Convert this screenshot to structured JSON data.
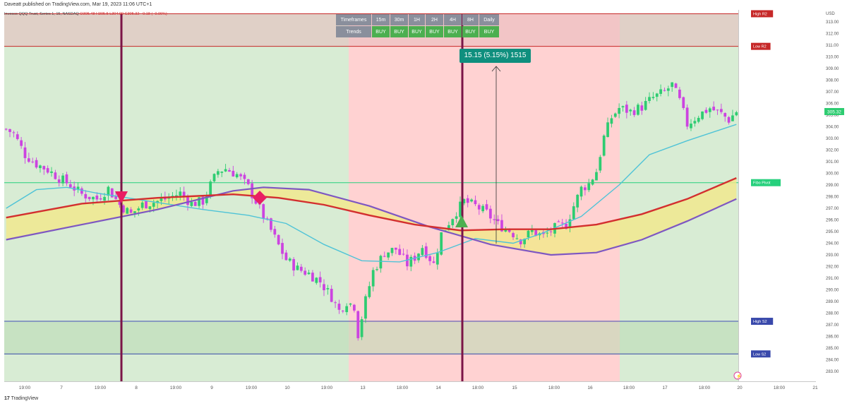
{
  "header": {
    "published": "Daveatt published on TradingView.com, Mar 19, 2023 11:06 UTC+1",
    "symbol_line": "Invesco QQQ Trust, Series 1, 15, NASDAQ",
    "ohlc": "O305.48 H305.5 L304.99 C305.32 −0.18 (−0.06%)"
  },
  "footer": {
    "brand": "TradingView",
    "logo_text": "17"
  },
  "timeframes_table": {
    "row1_label": "Timeframes",
    "row2_label": "Trends",
    "timeframes": [
      "15m",
      "30m",
      "1H",
      "2H",
      "4H",
      "8H",
      "Daily"
    ],
    "trends": [
      "BUY",
      "BUY",
      "BUY",
      "BUY",
      "BUY",
      "BUY",
      "BUY"
    ]
  },
  "measure_label": "15.15 (5.15%) 1515",
  "price_axis": {
    "currency": "USD",
    "ticks": [
      "313.00",
      "312.00",
      "311.00",
      "310.00",
      "309.00",
      "308.00",
      "307.00",
      "306.00",
      "305.00",
      "304.00",
      "303.00",
      "302.00",
      "301.00",
      "300.00",
      "299.00",
      "298.00",
      "297.00",
      "296.00",
      "295.00",
      "294.00",
      "293.00",
      "292.00",
      "291.00",
      "290.00",
      "289.00",
      "288.00",
      "287.00",
      "286.00",
      "285.00",
      "284.00",
      "283.00"
    ],
    "last_price": "305.32"
  },
  "time_axis": {
    "ticks": [
      "19:00",
      "7",
      "19:00",
      "8",
      "19:00",
      "9",
      "19:00",
      "10",
      "19:00",
      "13",
      "18:00",
      "14",
      "18:00",
      "15",
      "18:00",
      "16",
      "18:00",
      "17",
      "18:00",
      "20",
      "18:00",
      "21"
    ]
  },
  "levels": [
    {
      "label": "High R2",
      "price": 313.7,
      "color": "#c62828"
    },
    {
      "label": "Low R2",
      "price": 310.9,
      "color": "#c62828"
    },
    {
      "label": "Fibo Pivot",
      "price": 299.2,
      "color": "#26d07c"
    },
    {
      "label": "High S2",
      "price": 287.3,
      "color": "#3949ab"
    },
    {
      "label": "Low S2",
      "price": 284.5,
      "color": "#3949ab"
    }
  ],
  "colors": {
    "bull_candle": "#2ecc71",
    "bear_candle": "#cc44e0",
    "bg_green": "#d8ecd4",
    "bg_red": "#ffd2d2",
    "ma_fast": "#d32f2f",
    "ma_slow": "#7e57c2",
    "ma_cyan": "#4fc3d7",
    "fill_yellow": "#f3e98a",
    "signal_line": "#7b1447"
  },
  "chart_data": {
    "type": "candlestick",
    "symbol": "Invesco QQQ Trust, Series 1, 15, NASDAQ",
    "ylim": [
      282.3,
      314.5
    ],
    "x_ticks": [
      "19:00",
      "7",
      "19:00",
      "8",
      "19:00",
      "9",
      "19:00",
      "10",
      "19:00",
      "13",
      "18:00",
      "14",
      "18:00",
      "15",
      "18:00",
      "16",
      "18:00",
      "17",
      "18:00",
      "20",
      "18:00",
      "21"
    ],
    "close_path": [
      [
        0,
        303.8
      ],
      [
        2,
        303.4
      ],
      [
        5,
        301.6
      ],
      [
        8,
        300.8
      ],
      [
        11,
        300.3
      ],
      [
        14,
        299.6
      ],
      [
        17,
        299.0
      ],
      [
        20,
        298.2
      ],
      [
        24,
        297.8
      ],
      [
        27,
        298.7
      ],
      [
        30,
        297.3
      ],
      [
        33,
        296.5
      ],
      [
        36,
        297.3
      ],
      [
        40,
        297.6
      ],
      [
        43,
        297.9
      ],
      [
        46,
        298.3
      ],
      [
        49,
        297.4
      ],
      [
        52,
        297.6
      ],
      [
        54,
        299.0
      ],
      [
        56,
        300.2
      ],
      [
        58,
        300.4
      ],
      [
        61,
        299.9
      ],
      [
        64,
        298.8
      ],
      [
        66,
        297.6
      ],
      [
        68,
        296.3
      ],
      [
        70,
        295.1
      ],
      [
        72,
        293.8
      ],
      [
        74,
        292.6
      ],
      [
        77,
        291.8
      ],
      [
        80,
        291.4
      ],
      [
        83,
        290.7
      ],
      [
        86,
        289.4
      ],
      [
        88,
        288.2
      ],
      [
        90,
        289.0
      ],
      [
        92,
        288.6
      ],
      [
        93,
        286.2
      ],
      [
        95,
        289.1
      ],
      [
        97,
        291.6
      ],
      [
        100,
        293.2
      ],
      [
        103,
        293.5
      ],
      [
        106,
        292.2
      ],
      [
        108,
        292.8
      ],
      [
        110,
        293.7
      ],
      [
        113,
        292.2
      ],
      [
        115,
        294.8
      ],
      [
        118,
        296.3
      ],
      [
        121,
        297.6
      ],
      [
        124,
        297.2
      ],
      [
        127,
        296.6
      ],
      [
        130,
        295.6
      ],
      [
        133,
        295.1
      ],
      [
        136,
        294.3
      ],
      [
        139,
        295.0
      ],
      [
        142,
        294.6
      ],
      [
        145,
        295.3
      ],
      [
        148,
        295.6
      ],
      [
        150,
        297.2
      ],
      [
        152,
        298.7
      ],
      [
        154,
        299.1
      ],
      [
        156,
        300.2
      ],
      [
        158,
        303.1
      ],
      [
        160,
        304.8
      ],
      [
        162,
        305.6
      ],
      [
        165,
        305.3
      ],
      [
        168,
        305.7
      ],
      [
        171,
        306.5
      ],
      [
        174,
        307.0
      ],
      [
        176,
        307.6
      ],
      [
        178,
        306.2
      ],
      [
        180,
        304.2
      ],
      [
        183,
        305.0
      ],
      [
        186,
        305.6
      ],
      [
        189,
        305.1
      ],
      [
        191,
        304.6
      ],
      [
        193,
        305.32
      ]
    ],
    "moving_average_red": "rises from 296 to 298 then eases to 295 and climbs to 299.5",
    "moving_average_purple": "rises from 294 to 298.8 then falls to 293 and climbs to 297.8",
    "signals": [
      {
        "type": "sell-triangle",
        "color": "#e91e63",
        "price": 298.0
      },
      {
        "type": "diamond",
        "color": "#e91e63",
        "price": 297.9
      },
      {
        "type": "buy-triangle",
        "color": "#4caf50",
        "price": 295.8
      }
    ],
    "measure": {
      "from": 293.8,
      "to": 308.9,
      "label": "15.15 (5.15%) 1515"
    }
  }
}
